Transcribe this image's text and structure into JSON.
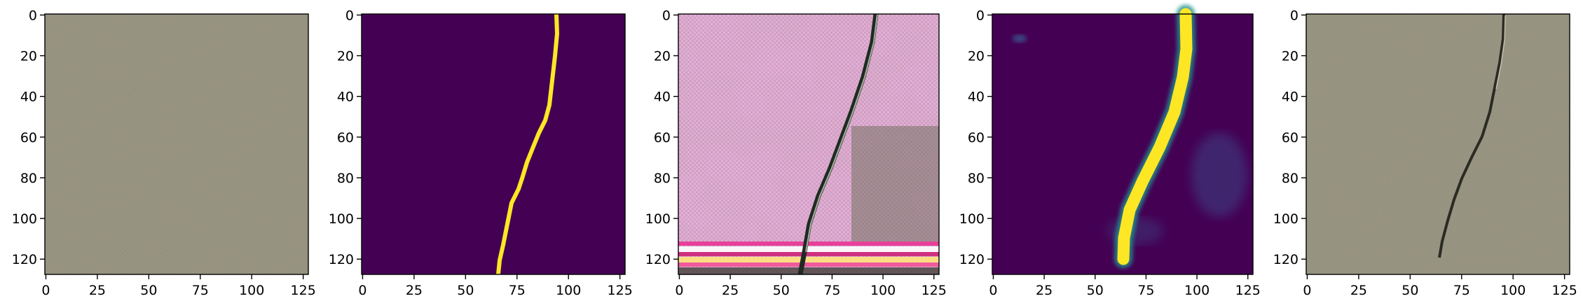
{
  "figure": {
    "panels": [
      {
        "name": "input-image",
        "kind": "photo",
        "description_colors": [
          "#9d9a86",
          "#a19e8a",
          "#98957f"
        ]
      },
      {
        "name": "ground-truth-mask",
        "kind": "mask",
        "description_colors": [
          "#440154",
          "#fde725"
        ]
      },
      {
        "name": "generated-image",
        "kind": "photo",
        "description_colors": [
          "#e8c6dc",
          "#c96aa8",
          "#6e6a5a"
        ]
      },
      {
        "name": "predicted-mask",
        "kind": "mask",
        "description_colors": [
          "#440154",
          "#fde725",
          "#21918c",
          "#3b518b"
        ]
      },
      {
        "name": "overlay-image",
        "kind": "photo",
        "description_colors": [
          "#9d9a86",
          "#a19e8a",
          "#2b2b24"
        ]
      }
    ],
    "x_ticks": [
      "0",
      "25",
      "50",
      "75",
      "100",
      "125"
    ],
    "x_tick_values": [
      0,
      25,
      50,
      75,
      100,
      125
    ],
    "y_ticks": [
      "0",
      "20",
      "40",
      "60",
      "80",
      "100",
      "120"
    ],
    "y_tick_values": [
      0,
      20,
      40,
      60,
      80,
      100,
      120
    ],
    "axis_range": [
      0,
      128
    ]
  }
}
